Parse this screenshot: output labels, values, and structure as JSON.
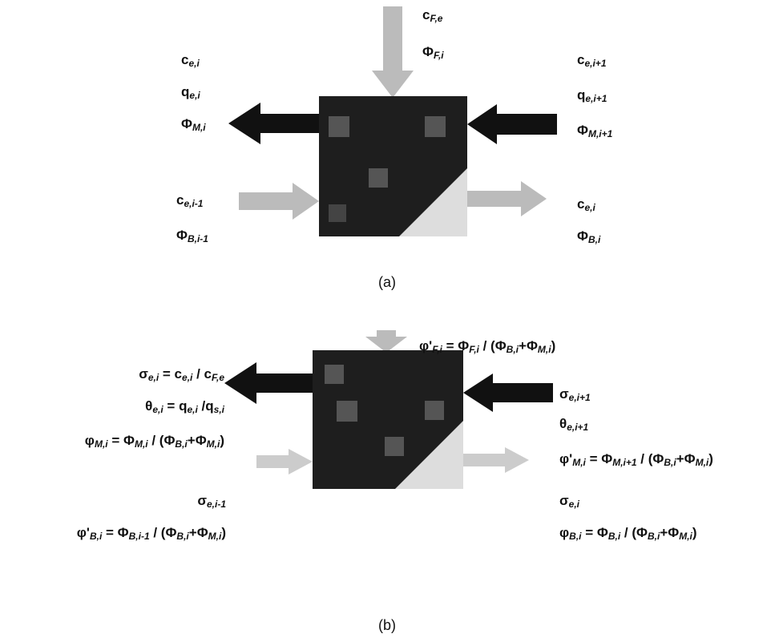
{
  "diagram_a": {
    "top": [
      [
        "c",
        {
          "sub": "F,e"
        }
      ],
      [
        "Φ",
        {
          "sub": "F,i"
        }
      ]
    ],
    "left": [
      [
        "c",
        {
          "sub": "e,i"
        }
      ],
      [
        "q",
        {
          "sub": "e,i"
        }
      ],
      [
        "Φ",
        {
          "sub": "M,i"
        }
      ]
    ],
    "right": [
      [
        "c",
        {
          "sub": "e,i+1"
        }
      ],
      [
        "q",
        {
          "sub": "e,i+1"
        }
      ],
      [
        "Φ",
        {
          "sub": "M,i+1"
        }
      ]
    ],
    "bottom_left": [
      [
        "c",
        {
          "sub": "e,i-1"
        }
      ],
      [
        "Φ",
        {
          "sub": "B,i-1"
        }
      ]
    ],
    "bottom_right": [
      [
        "c",
        {
          "sub": "e,i"
        }
      ],
      [
        "Φ",
        {
          "sub": "B,i"
        }
      ]
    ],
    "caption": "(a)"
  },
  "diagram_b": {
    "top": [
      [
        "φ'",
        {
          "sub": "F,i"
        },
        " = Φ",
        {
          "sub": "F,i"
        },
        " / (Φ",
        {
          "sub": "B,i"
        },
        "+Φ",
        {
          "sub": "M,i"
        },
        ")"
      ]
    ],
    "left": [
      [
        "σ",
        {
          "sub": "e,i"
        },
        " = c",
        {
          "sub": "e,i"
        },
        " / c",
        {
          "sub": "F,e"
        }
      ],
      [
        "θ",
        {
          "sub": "e,i"
        },
        " = q",
        {
          "sub": "e,i"
        },
        " /q",
        {
          "sub": "s,i"
        }
      ],
      [
        "φ",
        {
          "sub": "M,i"
        },
        " = Φ",
        {
          "sub": "M,i"
        },
        " / (Φ",
        {
          "sub": "B,i"
        },
        "+Φ",
        {
          "sub": "M,i"
        },
        ")"
      ]
    ],
    "right": [
      [
        "σ",
        {
          "sub": "e,i+1"
        }
      ],
      [
        "θ",
        {
          "sub": "e,i+1"
        }
      ],
      [
        "φ'",
        {
          "sub": "M,i"
        },
        " = Φ",
        {
          "sub": "M,i+1"
        },
        " / (Φ",
        {
          "sub": "B,i"
        },
        "+Φ",
        {
          "sub": "M,i"
        },
        ")"
      ]
    ],
    "bottom_left": [
      [
        "σ",
        {
          "sub": "e,i-1"
        }
      ],
      [
        "φ'",
        {
          "sub": "B,i"
        },
        " = Φ",
        {
          "sub": "B,i-1"
        },
        " / (Φ",
        {
          "sub": "B,i"
        },
        "+Φ",
        {
          "sub": "M,i"
        },
        ")"
      ]
    ],
    "bottom_right": [
      [
        "σ",
        {
          "sub": "e,i"
        }
      ],
      [
        "φ",
        {
          "sub": "B,i"
        },
        " = Φ",
        {
          "sub": "B,i"
        },
        " / (Φ",
        {
          "sub": "B,i"
        },
        "+Φ",
        {
          "sub": "M,i"
        },
        ")"
      ]
    ],
    "caption": "(b)"
  }
}
